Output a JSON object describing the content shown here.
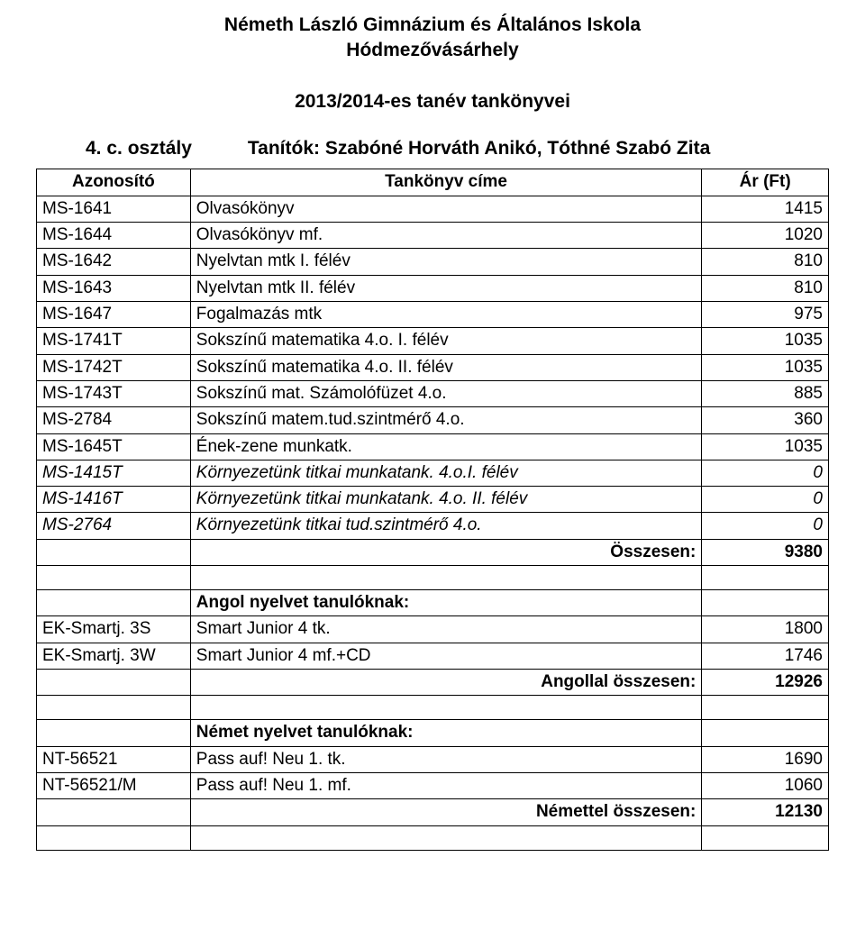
{
  "header": {
    "line1": "Németh László Gimnázium és Általános Iskola",
    "line2": "Hódmezővásárhely",
    "line3": "2013/2014-es tanév tankönyvei"
  },
  "class_info": {
    "class_label": "4. c. osztály",
    "teachers_label": "Tanítók: Szabóné Horváth Anikó, Tóthné Szabó Zita"
  },
  "columns": {
    "code": "Azonosító",
    "title": "Tankönyv címe",
    "price": "Ár (Ft)"
  },
  "rows": [
    {
      "type": "data",
      "code": "MS-1641",
      "title": "Olvasókönyv",
      "price": "1415"
    },
    {
      "type": "data",
      "code": "MS-1644",
      "title": "Olvasókönyv mf.",
      "price": "1020"
    },
    {
      "type": "data",
      "code": "MS-1642",
      "title": "Nyelvtan mtk I. félév",
      "price": "810"
    },
    {
      "type": "data",
      "code": "MS-1643",
      "title": "Nyelvtan mtk II. félév",
      "price": "810"
    },
    {
      "type": "data",
      "code": "MS-1647",
      "title": "Fogalmazás mtk",
      "price": "975"
    },
    {
      "type": "data",
      "code": "MS-1741T",
      "title": "Sokszínű matematika 4.o. I. félév",
      "price": "1035"
    },
    {
      "type": "data",
      "code": "MS-1742T",
      "title": "Sokszínű matematika 4.o. II. félév",
      "price": "1035"
    },
    {
      "type": "data",
      "code": "MS-1743T",
      "title": "Sokszínű mat. Számolófüzet 4.o.",
      "price": "885"
    },
    {
      "type": "data",
      "code": "MS-2784",
      "title": "Sokszínű matem.tud.szintmérő 4.o.",
      "price": "360"
    },
    {
      "type": "data",
      "code": "MS-1645T",
      "title": "Ének-zene munkatk.",
      "price": "1035"
    },
    {
      "type": "italic",
      "code": "MS-1415T",
      "title": "Környezetünk titkai munkatank. 4.o.I. félév",
      "price": "0"
    },
    {
      "type": "italic",
      "code": "MS-1416T",
      "title": "Környezetünk titkai munkatank. 4.o. II. félév",
      "price": "0"
    },
    {
      "type": "italic",
      "code": "MS-2764",
      "title": "Környezetünk titkai tud.szintmérő 4.o.",
      "price": "0"
    },
    {
      "type": "sum",
      "code": "",
      "title": "Összesen:",
      "price": "9380"
    },
    {
      "type": "empty",
      "code": "",
      "title": "",
      "price": ""
    },
    {
      "type": "section",
      "code": "",
      "title": "Angol nyelvet tanulóknak:",
      "price": ""
    },
    {
      "type": "data",
      "code": "EK-Smartj. 3S",
      "title": "Smart Junior 4 tk.",
      "price": "1800"
    },
    {
      "type": "data",
      "code": "EK-Smartj. 3W",
      "title": "Smart Junior 4 mf.+CD",
      "price": "1746"
    },
    {
      "type": "sum",
      "code": "",
      "title": "Angollal összesen:",
      "price": "12926"
    },
    {
      "type": "empty",
      "code": "",
      "title": "",
      "price": ""
    },
    {
      "type": "section",
      "code": "",
      "title": "Német nyelvet tanulóknak:",
      "price": ""
    },
    {
      "type": "data",
      "code": "NT-56521",
      "title": "Pass auf! Neu 1. tk.",
      "price": "1690"
    },
    {
      "type": "data",
      "code": "NT-56521/M",
      "title": "Pass auf! Neu 1. mf.",
      "price": "1060"
    },
    {
      "type": "sum",
      "code": "",
      "title": "Némettel összesen:",
      "price": "12130"
    },
    {
      "type": "empty",
      "code": "",
      "title": "",
      "price": ""
    }
  ]
}
